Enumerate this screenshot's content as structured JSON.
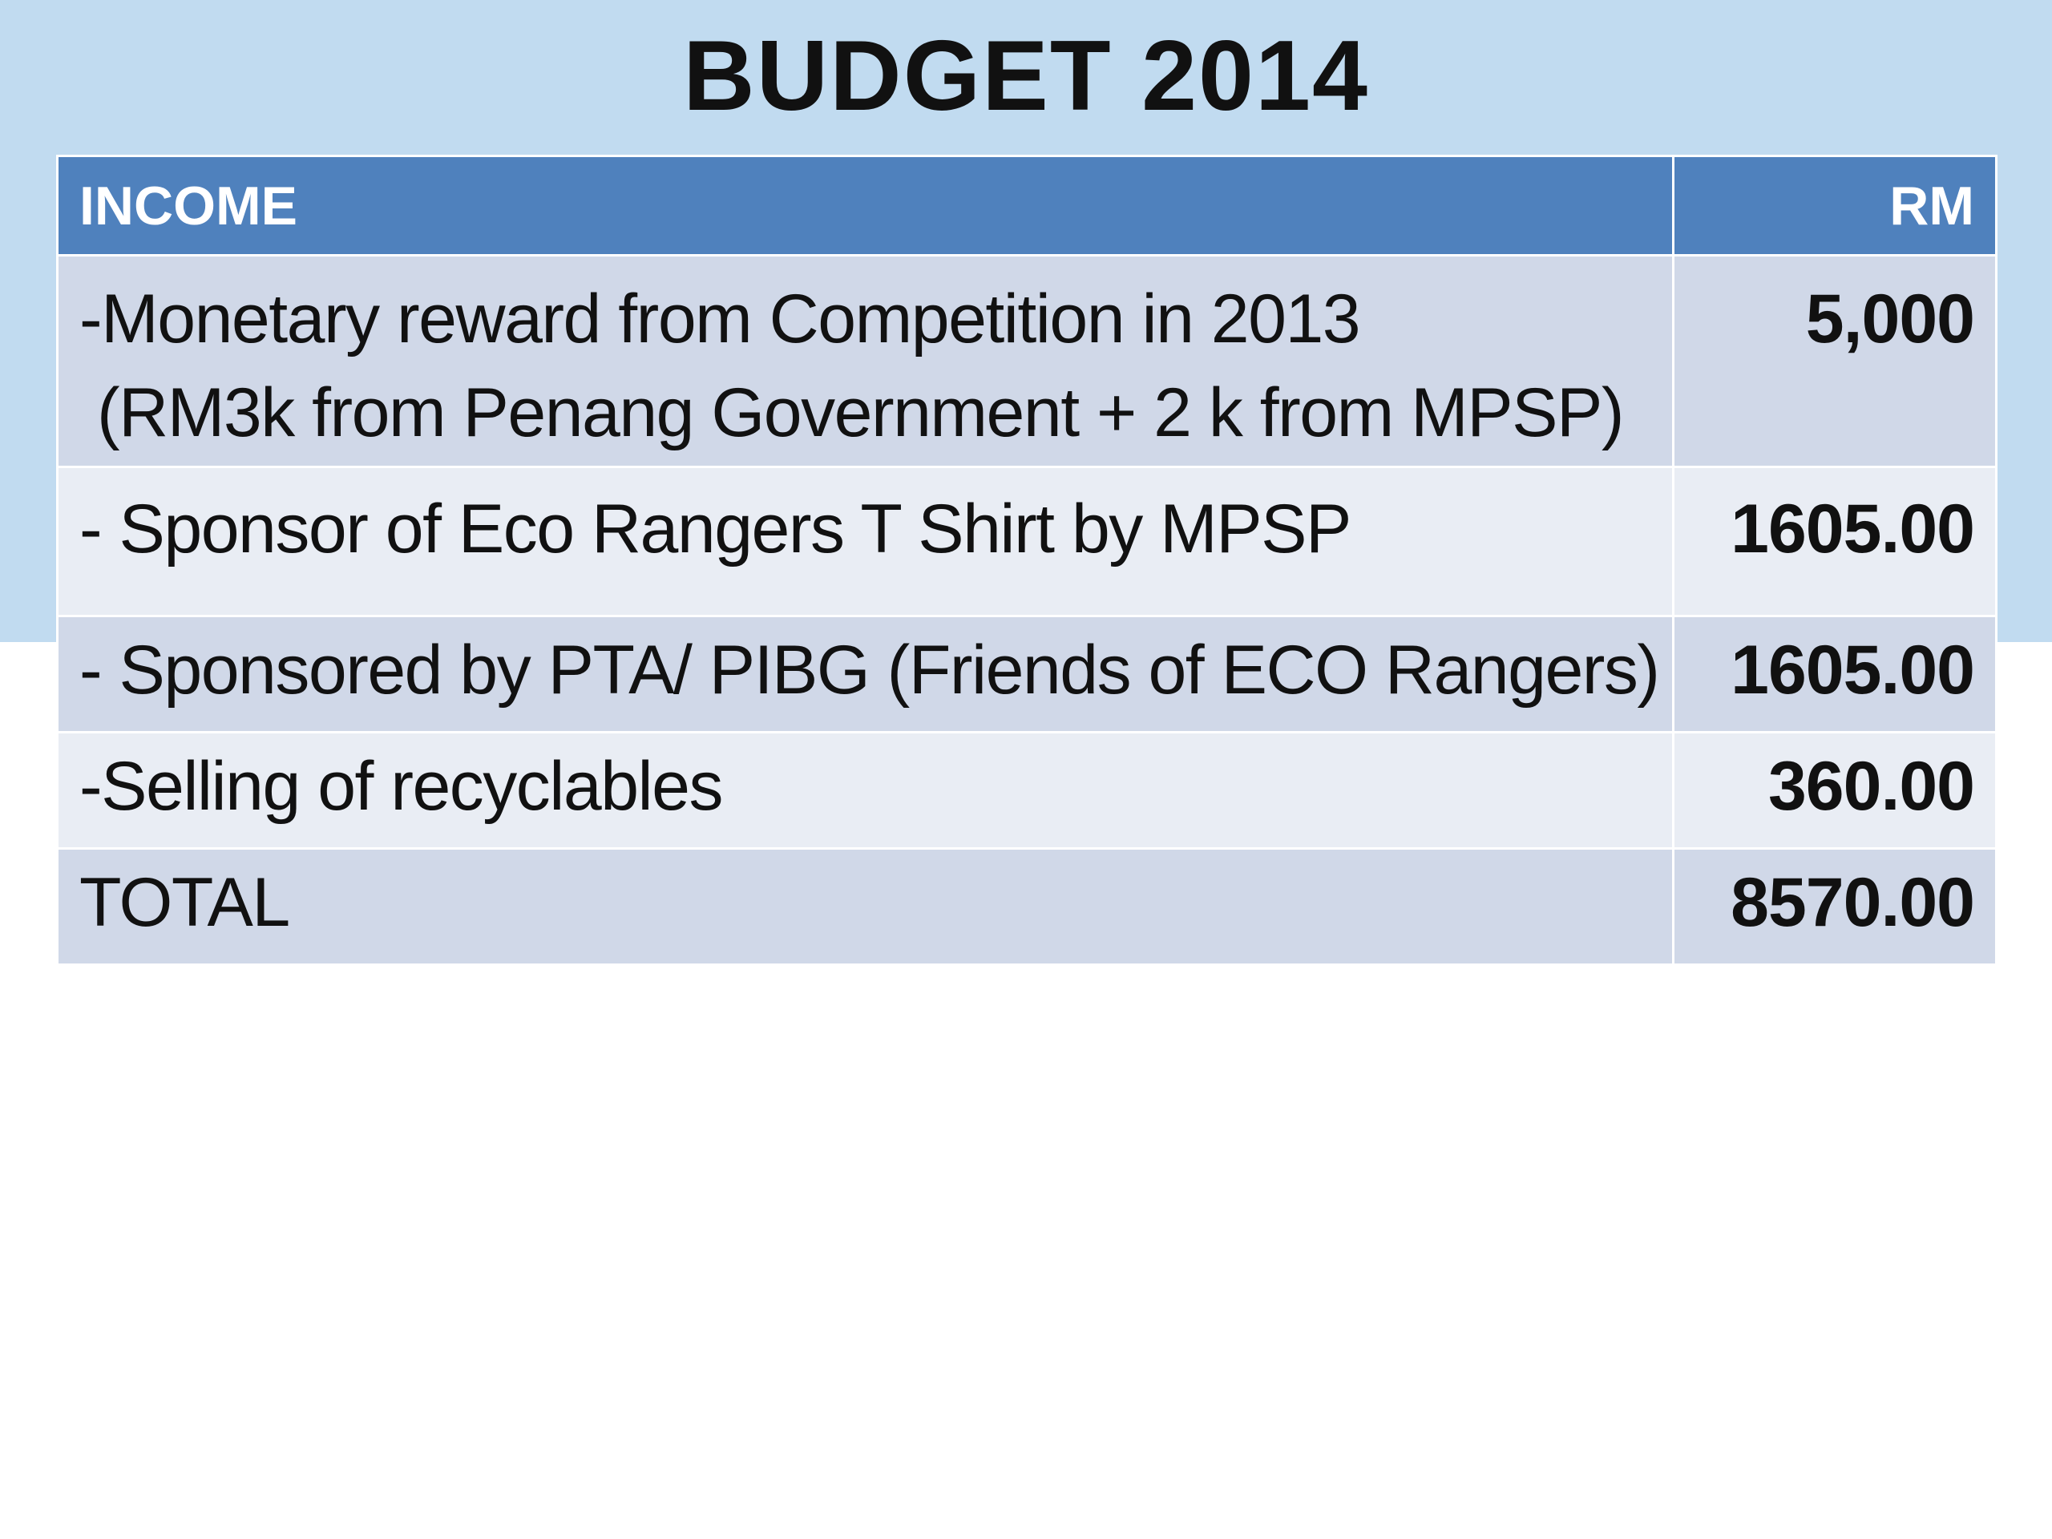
{
  "slide": {
    "title": "BUDGET 2014"
  },
  "table": {
    "headers": {
      "description": "INCOME",
      "amount": "RM"
    },
    "rows": [
      {
        "description_lines": [
          "-Monetary reward from Competition in 2013",
          "(RM3k from Penang Government + 2 k from MPSP)"
        ],
        "amount": "5,000"
      },
      {
        "description_lines": [
          "- Sponsor of Eco Rangers T Shirt by MPSP"
        ],
        "amount": "1605.00"
      },
      {
        "description_lines": [
          "- Sponsored by PTA/ PIBG (Friends of ECO Rangers)"
        ],
        "amount": "1605.00"
      },
      {
        "description_lines": [
          "-Selling of recyclables"
        ],
        "amount": "360.00"
      },
      {
        "description_lines": [
          "TOTAL"
        ],
        "amount": "8570.00"
      }
    ]
  },
  "colors": {
    "background_band": "#c1dbf0",
    "header_fill": "#4f81bd",
    "row_dark": "#d0d8e8",
    "row_light": "#e9edf4"
  }
}
